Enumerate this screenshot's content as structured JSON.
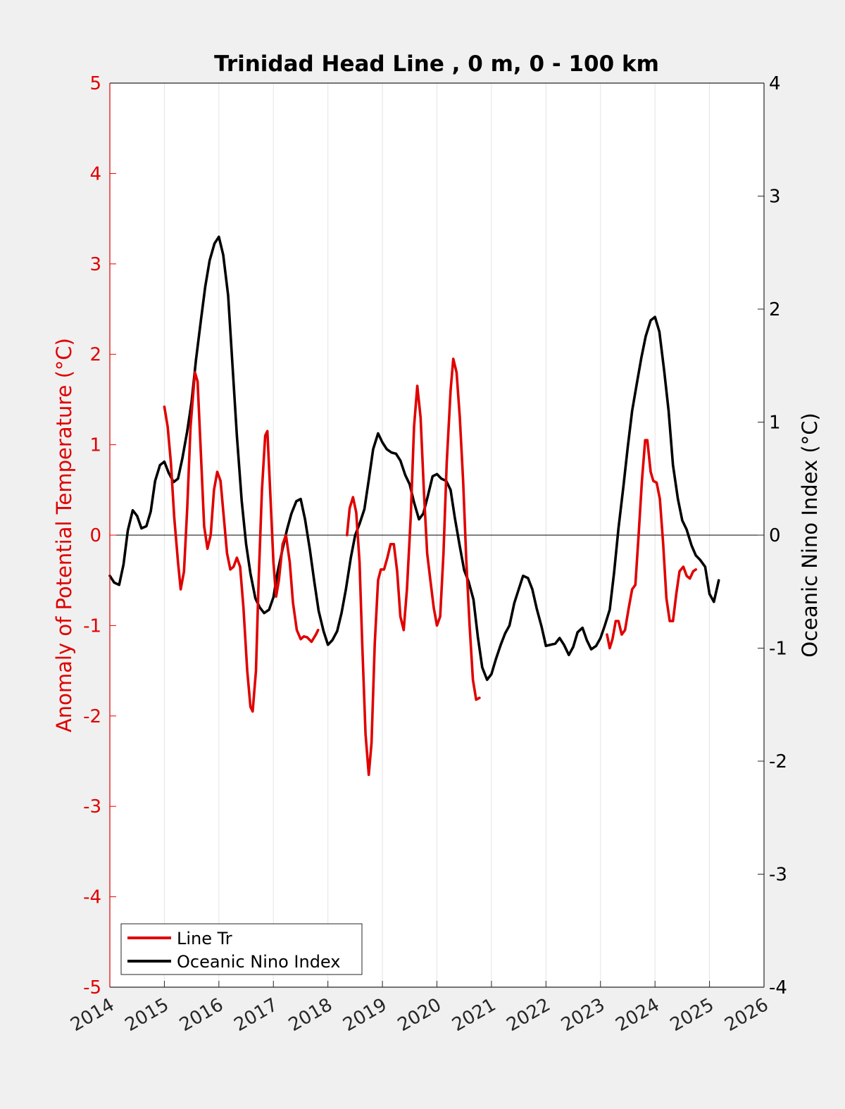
{
  "chart_data": {
    "type": "line",
    "title": "Trinidad Head Line , 0 m, 0 - 100 km",
    "ylabel_left": "Anomaly of Potential Temperature (°C)",
    "ylabel_right": "Oceanic Nino Index (°C)",
    "xlim": [
      2014,
      2026
    ],
    "ylim_left": [
      -5,
      5
    ],
    "ylim_right": [
      -4,
      4
    ],
    "x_ticks": [
      "2014",
      "2015",
      "2016",
      "2017",
      "2018",
      "2019",
      "2020",
      "2021",
      "2022",
      "2023",
      "2024",
      "2025",
      "2026"
    ],
    "y_left_ticks": [
      "5",
      "4",
      "3",
      "2",
      "1",
      "0",
      "-1",
      "-2",
      "-3",
      "-4",
      "-5"
    ],
    "y_right_ticks": [
      "4",
      "3",
      "2",
      "1",
      "0",
      "-1",
      "-2",
      "-3",
      "-4"
    ],
    "grid": "vertical",
    "legend_position": "bottom-left",
    "colors": {
      "line_tr": "#e00000",
      "oni": "#000000",
      "left_axis": "#e00000"
    },
    "series": [
      {
        "name": "Line Tr",
        "axis": "left",
        "segments": [
          [
            [
              2015.0,
              1.42
            ],
            [
              2015.06,
              1.2
            ],
            [
              2015.12,
              0.8
            ],
            [
              2015.18,
              0.2
            ],
            [
              2015.25,
              -0.3
            ],
            [
              2015.3,
              -0.6
            ],
            [
              2015.36,
              -0.4
            ],
            [
              2015.42,
              0.3
            ],
            [
              2015.48,
              1.2
            ],
            [
              2015.56,
              1.8
            ],
            [
              2015.61,
              1.7
            ],
            [
              2015.67,
              0.9
            ],
            [
              2015.73,
              0.1
            ],
            [
              2015.79,
              -0.15
            ],
            [
              2015.85,
              0.0
            ],
            [
              2015.91,
              0.5
            ],
            [
              2015.97,
              0.7
            ],
            [
              2016.03,
              0.6
            ],
            [
              2016.09,
              0.2
            ],
            [
              2016.15,
              -0.2
            ],
            [
              2016.21,
              -0.38
            ],
            [
              2016.27,
              -0.35
            ],
            [
              2016.33,
              -0.25
            ],
            [
              2016.39,
              -0.35
            ],
            [
              2016.45,
              -0.8
            ],
            [
              2016.52,
              -1.5
            ],
            [
              2016.58,
              -1.9
            ],
            [
              2016.62,
              -1.95
            ],
            [
              2016.68,
              -1.5
            ],
            [
              2016.73,
              -0.5
            ],
            [
              2016.79,
              0.5
            ],
            [
              2016.85,
              1.1
            ],
            [
              2016.89,
              1.15
            ],
            [
              2016.94,
              0.5
            ],
            [
              2017.0,
              -0.3
            ],
            [
              2017.05,
              -0.68
            ],
            [
              2017.1,
              -0.5
            ],
            [
              2017.17,
              -0.1
            ],
            [
              2017.23,
              0.0
            ],
            [
              2017.3,
              -0.3
            ],
            [
              2017.36,
              -0.75
            ],
            [
              2017.43,
              -1.05
            ],
            [
              2017.5,
              -1.15
            ],
            [
              2017.56,
              -1.12
            ],
            [
              2017.62,
              -1.13
            ],
            [
              2017.7,
              -1.18
            ],
            [
              2017.78,
              -1.1
            ],
            [
              2017.82,
              -1.05
            ]
          ],
          [
            [
              2018.35,
              0.0
            ],
            [
              2018.4,
              0.3
            ],
            [
              2018.46,
              0.42
            ],
            [
              2018.52,
              0.25
            ],
            [
              2018.58,
              -0.3
            ],
            [
              2018.63,
              -1.2
            ],
            [
              2018.69,
              -2.2
            ],
            [
              2018.75,
              -2.65
            ],
            [
              2018.8,
              -2.3
            ],
            [
              2018.86,
              -1.2
            ],
            [
              2018.92,
              -0.5
            ],
            [
              2018.97,
              -0.38
            ],
            [
              2019.03,
              -0.38
            ],
            [
              2019.09,
              -0.25
            ],
            [
              2019.15,
              -0.1
            ],
            [
              2019.21,
              -0.1
            ],
            [
              2019.27,
              -0.4
            ],
            [
              2019.33,
              -0.9
            ],
            [
              2019.39,
              -1.05
            ],
            [
              2019.45,
              -0.6
            ],
            [
              2019.52,
              0.2
            ],
            [
              2019.58,
              1.2
            ],
            [
              2019.64,
              1.65
            ],
            [
              2019.7,
              1.3
            ],
            [
              2019.76,
              0.5
            ],
            [
              2019.82,
              -0.2
            ],
            [
              2019.88,
              -0.5
            ],
            [
              2019.94,
              -0.8
            ],
            [
              2020.0,
              -1.0
            ],
            [
              2020.06,
              -0.9
            ],
            [
              2020.12,
              -0.2
            ],
            [
              2020.18,
              0.8
            ],
            [
              2020.25,
              1.6
            ],
            [
              2020.3,
              1.95
            ],
            [
              2020.36,
              1.8
            ],
            [
              2020.42,
              1.3
            ],
            [
              2020.48,
              0.6
            ],
            [
              2020.54,
              -0.3
            ],
            [
              2020.6,
              -1.0
            ],
            [
              2020.66,
              -1.6
            ],
            [
              2020.72,
              -1.82
            ],
            [
              2020.78,
              -1.8
            ]
          ],
          [
            [
              2023.12,
              -1.1
            ],
            [
              2023.17,
              -1.25
            ],
            [
              2023.22,
              -1.15
            ],
            [
              2023.28,
              -0.95
            ],
            [
              2023.33,
              -0.95
            ],
            [
              2023.39,
              -1.1
            ],
            [
              2023.45,
              -1.05
            ],
            [
              2023.52,
              -0.8
            ],
            [
              2023.58,
              -0.6
            ],
            [
              2023.64,
              -0.55
            ],
            [
              2023.7,
              0.0
            ],
            [
              2023.76,
              0.6
            ],
            [
              2023.82,
              1.05
            ],
            [
              2023.86,
              1.05
            ],
            [
              2023.92,
              0.7
            ],
            [
              2023.97,
              0.6
            ],
            [
              2024.03,
              0.58
            ],
            [
              2024.09,
              0.4
            ],
            [
              2024.15,
              -0.1
            ],
            [
              2024.21,
              -0.7
            ],
            [
              2024.27,
              -0.95
            ],
            [
              2024.33,
              -0.95
            ],
            [
              2024.39,
              -0.65
            ],
            [
              2024.45,
              -0.4
            ],
            [
              2024.52,
              -0.35
            ],
            [
              2024.58,
              -0.45
            ],
            [
              2024.64,
              -0.48
            ],
            [
              2024.7,
              -0.4
            ],
            [
              2024.75,
              -0.38
            ]
          ]
        ]
      },
      {
        "name": "Oceanic Nino Index",
        "axis": "right",
        "segments": [
          [
            [
              2014.0,
              -0.36
            ],
            [
              2014.08,
              -0.42
            ],
            [
              2014.17,
              -0.44
            ],
            [
              2014.25,
              -0.26
            ],
            [
              2014.33,
              0.04
            ],
            [
              2014.42,
              0.22
            ],
            [
              2014.5,
              0.17
            ],
            [
              2014.58,
              0.06
            ],
            [
              2014.67,
              0.08
            ],
            [
              2014.75,
              0.21
            ],
            [
              2014.83,
              0.48
            ],
            [
              2014.92,
              0.62
            ],
            [
              2015.0,
              0.65
            ],
            [
              2015.08,
              0.55
            ],
            [
              2015.17,
              0.47
            ],
            [
              2015.25,
              0.5
            ],
            [
              2015.33,
              0.68
            ],
            [
              2015.42,
              0.92
            ],
            [
              2015.5,
              1.18
            ],
            [
              2015.58,
              1.55
            ],
            [
              2015.67,
              1.9
            ],
            [
              2015.75,
              2.2
            ],
            [
              2015.83,
              2.43
            ],
            [
              2015.92,
              2.58
            ],
            [
              2016.0,
              2.64
            ],
            [
              2016.08,
              2.48
            ],
            [
              2016.17,
              2.12
            ],
            [
              2016.25,
              1.5
            ],
            [
              2016.33,
              0.88
            ],
            [
              2016.42,
              0.3
            ],
            [
              2016.5,
              -0.08
            ],
            [
              2016.58,
              -0.34
            ],
            [
              2016.67,
              -0.56
            ],
            [
              2016.75,
              -0.64
            ],
            [
              2016.83,
              -0.69
            ],
            [
              2016.92,
              -0.66
            ],
            [
              2017.0,
              -0.55
            ],
            [
              2017.08,
              -0.32
            ],
            [
              2017.17,
              -0.12
            ],
            [
              2017.25,
              0.05
            ],
            [
              2017.33,
              0.19
            ],
            [
              2017.42,
              0.3
            ],
            [
              2017.5,
              0.32
            ],
            [
              2017.58,
              0.14
            ],
            [
              2017.67,
              -0.13
            ],
            [
              2017.75,
              -0.41
            ],
            [
              2017.83,
              -0.67
            ],
            [
              2017.92,
              -0.85
            ],
            [
              2018.0,
              -0.97
            ],
            [
              2018.08,
              -0.93
            ],
            [
              2018.17,
              -0.85
            ],
            [
              2018.25,
              -0.69
            ],
            [
              2018.33,
              -0.48
            ],
            [
              2018.42,
              -0.2
            ],
            [
              2018.5,
              0.0
            ],
            [
              2018.58,
              0.1
            ],
            [
              2018.67,
              0.23
            ],
            [
              2018.75,
              0.49
            ],
            [
              2018.83,
              0.76
            ],
            [
              2018.92,
              0.9
            ],
            [
              2019.0,
              0.82
            ],
            [
              2019.08,
              0.76
            ],
            [
              2019.17,
              0.73
            ],
            [
              2019.25,
              0.72
            ],
            [
              2019.33,
              0.66
            ],
            [
              2019.42,
              0.53
            ],
            [
              2019.5,
              0.45
            ],
            [
              2019.58,
              0.29
            ],
            [
              2019.67,
              0.14
            ],
            [
              2019.75,
              0.19
            ],
            [
              2019.83,
              0.34
            ],
            [
              2019.92,
              0.52
            ],
            [
              2020.0,
              0.54
            ],
            [
              2020.08,
              0.5
            ],
            [
              2020.17,
              0.48
            ],
            [
              2020.25,
              0.4
            ],
            [
              2020.33,
              0.15
            ],
            [
              2020.42,
              -0.1
            ],
            [
              2020.5,
              -0.31
            ],
            [
              2020.58,
              -0.41
            ],
            [
              2020.67,
              -0.57
            ],
            [
              2020.75,
              -0.9
            ],
            [
              2020.83,
              -1.17
            ],
            [
              2020.92,
              -1.28
            ],
            [
              2021.0,
              -1.23
            ],
            [
              2021.08,
              -1.1
            ],
            [
              2021.17,
              -0.97
            ],
            [
              2021.25,
              -0.87
            ],
            [
              2021.33,
              -0.8
            ],
            [
              2021.42,
              -0.6
            ],
            [
              2021.5,
              -0.48
            ],
            [
              2021.58,
              -0.36
            ],
            [
              2021.67,
              -0.38
            ],
            [
              2021.75,
              -0.48
            ],
            [
              2021.83,
              -0.65
            ],
            [
              2021.92,
              -0.81
            ],
            [
              2022.0,
              -0.98
            ],
            [
              2022.08,
              -0.97
            ],
            [
              2022.17,
              -0.96
            ],
            [
              2022.25,
              -0.91
            ],
            [
              2022.33,
              -0.97
            ],
            [
              2022.42,
              -1.06
            ],
            [
              2022.5,
              -0.99
            ],
            [
              2022.58,
              -0.86
            ],
            [
              2022.67,
              -0.82
            ],
            [
              2022.75,
              -0.93
            ],
            [
              2022.83,
              -1.01
            ],
            [
              2022.92,
              -0.98
            ],
            [
              2023.0,
              -0.91
            ],
            [
              2023.08,
              -0.8
            ],
            [
              2023.17,
              -0.66
            ],
            [
              2023.25,
              -0.33
            ],
            [
              2023.33,
              0.06
            ],
            [
              2023.42,
              0.43
            ],
            [
              2023.5,
              0.78
            ],
            [
              2023.58,
              1.1
            ],
            [
              2023.67,
              1.35
            ],
            [
              2023.75,
              1.57
            ],
            [
              2023.83,
              1.76
            ],
            [
              2023.92,
              1.9
            ],
            [
              2024.0,
              1.93
            ],
            [
              2024.08,
              1.8
            ],
            [
              2024.17,
              1.45
            ],
            [
              2024.25,
              1.1
            ],
            [
              2024.33,
              0.62
            ],
            [
              2024.42,
              0.32
            ],
            [
              2024.5,
              0.13
            ],
            [
              2024.58,
              0.05
            ],
            [
              2024.67,
              -0.09
            ],
            [
              2024.75,
              -0.18
            ],
            [
              2024.83,
              -0.22
            ],
            [
              2024.92,
              -0.28
            ],
            [
              2025.0,
              -0.52
            ],
            [
              2025.08,
              -0.59
            ],
            [
              2025.17,
              -0.4
            ]
          ]
        ]
      }
    ]
  }
}
